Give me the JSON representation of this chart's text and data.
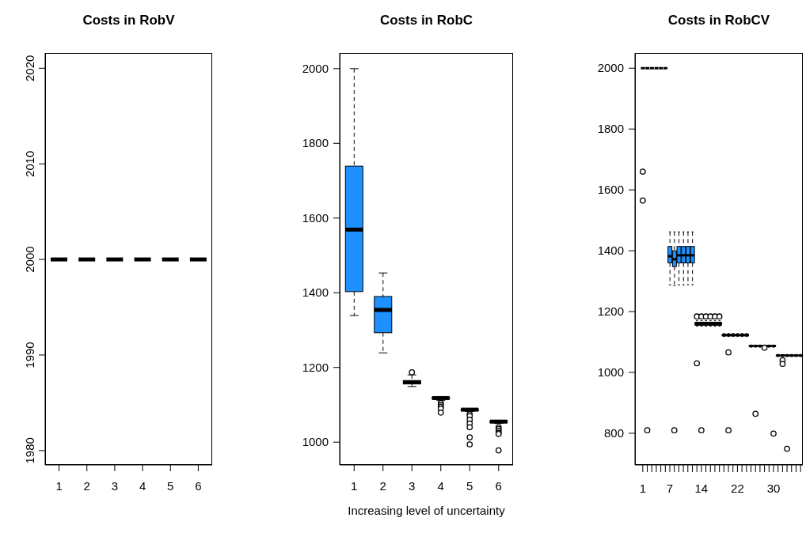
{
  "chart_data": [
    {
      "type": "box",
      "title": "Costs in RobV",
      "categories": [
        "1",
        "2",
        "3",
        "4",
        "5",
        "6"
      ],
      "ylim": [
        1978.5,
        2021.6
      ],
      "yticks": [
        1980,
        1990,
        2000,
        2010,
        2020
      ],
      "boxes": [
        {
          "low": 2000,
          "q1": 2000,
          "median": 2000,
          "q3": 2000,
          "high": 2000
        },
        {
          "low": 2000,
          "q1": 2000,
          "median": 2000,
          "q3": 2000,
          "high": 2000
        },
        {
          "low": 2000,
          "q1": 2000,
          "median": 2000,
          "q3": 2000,
          "high": 2000
        },
        {
          "low": 2000,
          "q1": 2000,
          "median": 2000,
          "q3": 2000,
          "high": 2000
        },
        {
          "low": 2000,
          "q1": 2000,
          "median": 2000,
          "q3": 2000,
          "high": 2000
        },
        {
          "low": 2000,
          "q1": 2000,
          "median": 2000,
          "q3": 2000,
          "high": 2000
        }
      ]
    },
    {
      "type": "box",
      "title": "Costs in RobC",
      "xlabel": "Increasing level of uncertainty",
      "categories": [
        "1",
        "2",
        "3",
        "4",
        "5",
        "6"
      ],
      "color": "#1e90ff",
      "ylim": [
        939,
        2042
      ],
      "yticks": [
        1000,
        1200,
        1400,
        1600,
        1800,
        2000
      ],
      "boxes": [
        {
          "low": 1339,
          "q1": 1403,
          "median": 1569,
          "q3": 1739,
          "high": 2000
        },
        {
          "low": 1239,
          "q1": 1293,
          "median": 1354,
          "q3": 1390,
          "high": 1453
        },
        {
          "low": 1149,
          "q1": 1156,
          "median": 1160,
          "q3": 1165,
          "high": 1180,
          "outliers": [
            1187
          ]
        },
        {
          "low": 1112,
          "q1": 1116,
          "median": 1118,
          "q3": 1120,
          "high": 1122,
          "outliers": [
            1105,
            1100,
            1095,
            1090,
            1079
          ]
        },
        {
          "low": 1082,
          "q1": 1085,
          "median": 1087,
          "q3": 1088,
          "high": 1090,
          "outliers": [
            1075,
            1070,
            1060,
            1050,
            1040,
            1013,
            994
          ]
        },
        {
          "low": 1050,
          "q1": 1053,
          "median": 1055,
          "q3": 1056,
          "high": 1058,
          "outliers": [
            1040,
            1035,
            1030,
            1025,
            1022,
            978
          ]
        }
      ]
    },
    {
      "type": "box",
      "title": "Costs in RobCV",
      "categories": [
        "1",
        null,
        null,
        null,
        null,
        null,
        "7",
        null,
        null,
        null,
        null,
        null,
        null,
        "14",
        null,
        null,
        null,
        null,
        null,
        null,
        null,
        "22",
        null,
        null,
        null,
        null,
        null,
        null,
        null,
        "30",
        null,
        null,
        null,
        null,
        null,
        null
      ],
      "colors": [
        "#000000",
        "#000000",
        "#000000",
        "#000000",
        "#000000",
        "#000000",
        "#1e90ff",
        "#1e90ff",
        "#1e90ff",
        "#1e90ff",
        "#1e90ff",
        "#1e90ff",
        "#000000",
        "#000000",
        "#000000",
        "#000000",
        "#000000",
        "#000000",
        "#000000",
        "#000000",
        "#000000",
        "#000000",
        "#000000",
        "#000000",
        "#000000",
        "#000000",
        "#000000",
        "#000000",
        "#000000",
        "#000000",
        "#000000",
        "#000000",
        "#000000",
        "#000000",
        "#000000",
        "#000000"
      ],
      "ylim": [
        696,
        2050
      ],
      "yticks": [
        800,
        1000,
        1200,
        1400,
        1600,
        1800,
        2000
      ],
      "boxes": [
        {
          "low": 2000,
          "q1": 2000,
          "median": 2000,
          "q3": 2000,
          "high": 2000,
          "outliers": [
            1660,
            1565
          ]
        },
        {
          "low": 2000,
          "q1": 2000,
          "median": 2000,
          "q3": 2000,
          "high": 2000,
          "outliers": [
            810
          ]
        },
        {
          "low": 2000,
          "q1": 2000,
          "median": 2000,
          "q3": 2000,
          "high": 2000
        },
        {
          "low": 2000,
          "q1": 2000,
          "median": 2000,
          "q3": 2000,
          "high": 2000
        },
        {
          "low": 2000,
          "q1": 2000,
          "median": 2000,
          "q3": 2000,
          "high": 2000
        },
        {
          "low": 2000,
          "q1": 2000,
          "median": 2000,
          "q3": 2000,
          "high": 2000
        },
        {
          "low": 1288,
          "q1": 1360,
          "median": 1382,
          "q3": 1414,
          "high": 1462
        },
        {
          "low": 1285,
          "q1": 1348,
          "median": 1372,
          "q3": 1400,
          "high": 1462,
          "outliers": [
            810
          ]
        },
        {
          "low": 1288,
          "q1": 1360,
          "median": 1385,
          "q3": 1414,
          "high": 1462
        },
        {
          "low": 1288,
          "q1": 1360,
          "median": 1385,
          "q3": 1414,
          "high": 1462
        },
        {
          "low": 1288,
          "q1": 1360,
          "median": 1385,
          "q3": 1414,
          "high": 1462
        },
        {
          "low": 1288,
          "q1": 1360,
          "median": 1385,
          "q3": 1414,
          "high": 1462
        },
        {
          "low": 1152,
          "q1": 1155,
          "median": 1160,
          "q3": 1165,
          "high": 1170,
          "outliers": [
            1184,
            1030
          ]
        },
        {
          "low": 1152,
          "q1": 1155,
          "median": 1160,
          "q3": 1165,
          "high": 1170,
          "outliers": [
            1184,
            810
          ]
        },
        {
          "low": 1152,
          "q1": 1155,
          "median": 1160,
          "q3": 1165,
          "high": 1170,
          "outliers": [
            1184
          ]
        },
        {
          "low": 1152,
          "q1": 1155,
          "median": 1160,
          "q3": 1165,
          "high": 1170,
          "outliers": [
            1184
          ]
        },
        {
          "low": 1152,
          "q1": 1155,
          "median": 1160,
          "q3": 1165,
          "high": 1170,
          "outliers": [
            1184
          ]
        },
        {
          "low": 1152,
          "q1": 1155,
          "median": 1160,
          "q3": 1165,
          "high": 1170,
          "outliers": [
            1184
          ]
        },
        {
          "low": 1118,
          "q1": 1120,
          "median": 1123,
          "q3": 1125,
          "high": 1128
        },
        {
          "low": 1118,
          "q1": 1120,
          "median": 1123,
          "q3": 1125,
          "high": 1128,
          "outliers": [
            1066,
            810
          ]
        },
        {
          "low": 1118,
          "q1": 1120,
          "median": 1123,
          "q3": 1125,
          "high": 1128
        },
        {
          "low": 1118,
          "q1": 1120,
          "median": 1123,
          "q3": 1125,
          "high": 1128
        },
        {
          "low": 1118,
          "q1": 1120,
          "median": 1123,
          "q3": 1125,
          "high": 1128
        },
        {
          "low": 1118,
          "q1": 1120,
          "median": 1123,
          "q3": 1125,
          "high": 1128
        },
        {
          "low": 1083,
          "q1": 1085,
          "median": 1087,
          "q3": 1088,
          "high": 1090
        },
        {
          "low": 1083,
          "q1": 1085,
          "median": 1087,
          "q3": 1088,
          "high": 1090,
          "outliers": [
            864
          ]
        },
        {
          "low": 1083,
          "q1": 1085,
          "median": 1087,
          "q3": 1088,
          "high": 1090
        },
        {
          "low": 1084,
          "q1": 1085,
          "median": 1087,
          "q3": 1088,
          "high": 1090,
          "outliers": [
            1081
          ]
        },
        {
          "low": 1083,
          "q1": 1085,
          "median": 1087,
          "q3": 1088,
          "high": 1090
        },
        {
          "low": 1083,
          "q1": 1085,
          "median": 1087,
          "q3": 1088,
          "high": 1090,
          "outliers": [
            799
          ]
        },
        {
          "low": 1052,
          "q1": 1054,
          "median": 1056,
          "q3": 1057,
          "high": 1059
        },
        {
          "low": 1052,
          "q1": 1054,
          "median": 1056,
          "q3": 1057,
          "high": 1059,
          "outliers": [
            1040,
            1028
          ]
        },
        {
          "low": 1052,
          "q1": 1054,
          "median": 1056,
          "q3": 1057,
          "high": 1059,
          "outliers": [
            749
          ]
        },
        {
          "low": 1052,
          "q1": 1054,
          "median": 1056,
          "q3": 1057,
          "high": 1059
        },
        {
          "low": 1052,
          "q1": 1054,
          "median": 1056,
          "q3": 1057,
          "high": 1059
        },
        {
          "low": 1052,
          "q1": 1054,
          "median": 1056,
          "q3": 1057,
          "high": 1059
        }
      ]
    }
  ]
}
